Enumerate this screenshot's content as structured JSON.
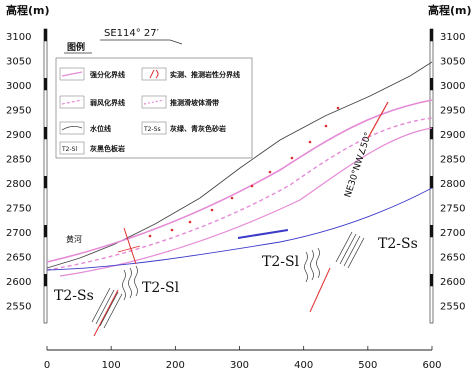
{
  "axes": {
    "left_title": "高程(m)",
    "right_title": "高程(m)",
    "y_ticks": [
      "3100",
      "3050",
      "3000",
      "2950",
      "2900",
      "2850",
      "2800",
      "2750",
      "2700",
      "2650",
      "2600",
      "2550"
    ],
    "x_ticks": [
      "0",
      "100",
      "200",
      "300",
      "400",
      "500",
      "600"
    ]
  },
  "profile_direction": "SE114° 27′",
  "legend": {
    "title": "图例",
    "items": [
      {
        "key": "strong-weathering",
        "label": "强分化界线"
      },
      {
        "key": "measured-boundary",
        "label": "实测、推测岩性分界线"
      },
      {
        "key": "weak-weathering",
        "label": "弱风化界线"
      },
      {
        "key": "slide-zone",
        "label": "推测滑坡体滑带"
      },
      {
        "key": "water-level",
        "label": "水位线"
      },
      {
        "key": "t2ss-code",
        "code": "T2-Ss",
        "label": "灰绿、青灰色砂岩"
      },
      {
        "key": "t2sl-code",
        "code": "T2-Sl",
        "label": "灰黑色板岩"
      }
    ]
  },
  "labels": {
    "river": "黄河",
    "fault": "NE30°NW∠50°",
    "t2ss_left": "T2-Ss",
    "t2sl_left": "T2-Sl",
    "t2sl_mid": "T2-Sl",
    "t2ss_right": "T2-Ss"
  },
  "colors": {
    "terrain": "#444444",
    "weathering": "#e58ad6",
    "water": "#3b3bc8",
    "boundary": "#e03030"
  }
}
